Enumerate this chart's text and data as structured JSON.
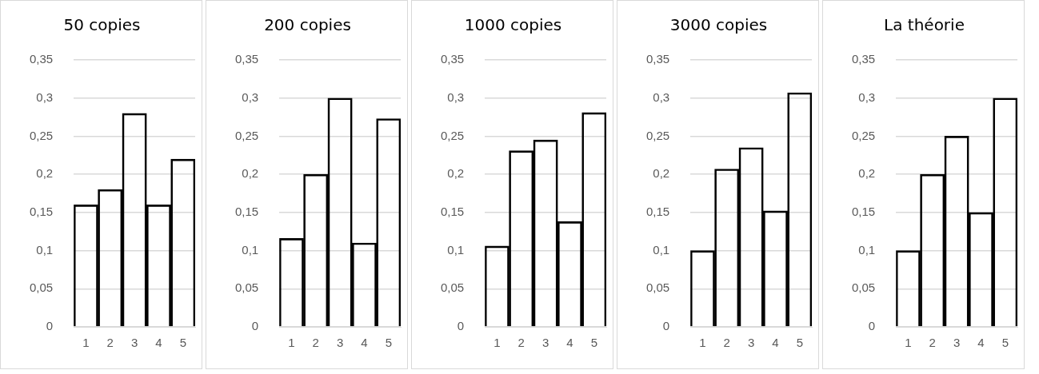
{
  "chart_data": [
    {
      "type": "bar",
      "title": "50 copies",
      "categories": [
        "1",
        "2",
        "3",
        "4",
        "5"
      ],
      "values": [
        0.16,
        0.18,
        0.28,
        0.16,
        0.22
      ],
      "color": "#000000",
      "ylim": [
        0,
        0.35
      ],
      "yticks": [
        {
          "value": 0,
          "label": "0"
        },
        {
          "value": 0.05,
          "label": "0,05"
        },
        {
          "value": 0.1,
          "label": "0,1"
        },
        {
          "value": 0.15,
          "label": "0,15"
        },
        {
          "value": 0.2,
          "label": "0,2"
        },
        {
          "value": 0.25,
          "label": "0,25"
        },
        {
          "value": 0.3,
          "label": "0,3"
        },
        {
          "value": 0.35,
          "label": "0,35"
        }
      ],
      "grid": "y",
      "legend": false
    },
    {
      "type": "bar",
      "title": "200 copies",
      "categories": [
        "1",
        "2",
        "3",
        "4",
        "5"
      ],
      "values": [
        0.116,
        0.2,
        0.3,
        0.11,
        0.273
      ],
      "color": "#000000",
      "ylim": [
        0,
        0.35
      ],
      "yticks": [
        {
          "value": 0,
          "label": "0"
        },
        {
          "value": 0.05,
          "label": "0,05"
        },
        {
          "value": 0.1,
          "label": "0,1"
        },
        {
          "value": 0.15,
          "label": "0,15"
        },
        {
          "value": 0.2,
          "label": "0,2"
        },
        {
          "value": 0.25,
          "label": "0,25"
        },
        {
          "value": 0.3,
          "label": "0,3"
        },
        {
          "value": 0.35,
          "label": "0,35"
        }
      ],
      "grid": "y",
      "legend": false
    },
    {
      "type": "bar",
      "title": "1000 copies",
      "categories": [
        "1",
        "2",
        "3",
        "4",
        "5"
      ],
      "values": [
        0.106,
        0.231,
        0.245,
        0.138,
        0.281
      ],
      "color": "#000000",
      "ylim": [
        0,
        0.35
      ],
      "yticks": [
        {
          "value": 0,
          "label": "0"
        },
        {
          "value": 0.05,
          "label": "0,05"
        },
        {
          "value": 0.1,
          "label": "0,1"
        },
        {
          "value": 0.15,
          "label": "0,15"
        },
        {
          "value": 0.2,
          "label": "0,2"
        },
        {
          "value": 0.25,
          "label": "0,25"
        },
        {
          "value": 0.3,
          "label": "0,3"
        },
        {
          "value": 0.35,
          "label": "0,35"
        }
      ],
      "grid": "y",
      "legend": false
    },
    {
      "type": "bar",
      "title": "3000 copies",
      "categories": [
        "1",
        "2",
        "3",
        "4",
        "5"
      ],
      "values": [
        0.1,
        0.207,
        0.235,
        0.152,
        0.307
      ],
      "color": "#000000",
      "ylim": [
        0,
        0.35
      ],
      "yticks": [
        {
          "value": 0,
          "label": "0"
        },
        {
          "value": 0.05,
          "label": "0,05"
        },
        {
          "value": 0.1,
          "label": "0,1"
        },
        {
          "value": 0.15,
          "label": "0,15"
        },
        {
          "value": 0.2,
          "label": "0,2"
        },
        {
          "value": 0.25,
          "label": "0,25"
        },
        {
          "value": 0.3,
          "label": "0,3"
        },
        {
          "value": 0.35,
          "label": "0,35"
        }
      ],
      "grid": "y",
      "legend": false
    },
    {
      "type": "bar",
      "title": "La théorie",
      "categories": [
        "1",
        "2",
        "3",
        "4",
        "5"
      ],
      "values": [
        0.1,
        0.2,
        0.25,
        0.15,
        0.3
      ],
      "color": "#000000",
      "ylim": [
        0,
        0.35
      ],
      "yticks": [
        {
          "value": 0,
          "label": "0"
        },
        {
          "value": 0.05,
          "label": "0,05"
        },
        {
          "value": 0.1,
          "label": "0,1"
        },
        {
          "value": 0.15,
          "label": "0,15"
        },
        {
          "value": 0.2,
          "label": "0,2"
        },
        {
          "value": 0.25,
          "label": "0,25"
        },
        {
          "value": 0.3,
          "label": "0,3"
        },
        {
          "value": 0.35,
          "label": "0,35"
        }
      ],
      "grid": "y",
      "legend": false
    }
  ]
}
